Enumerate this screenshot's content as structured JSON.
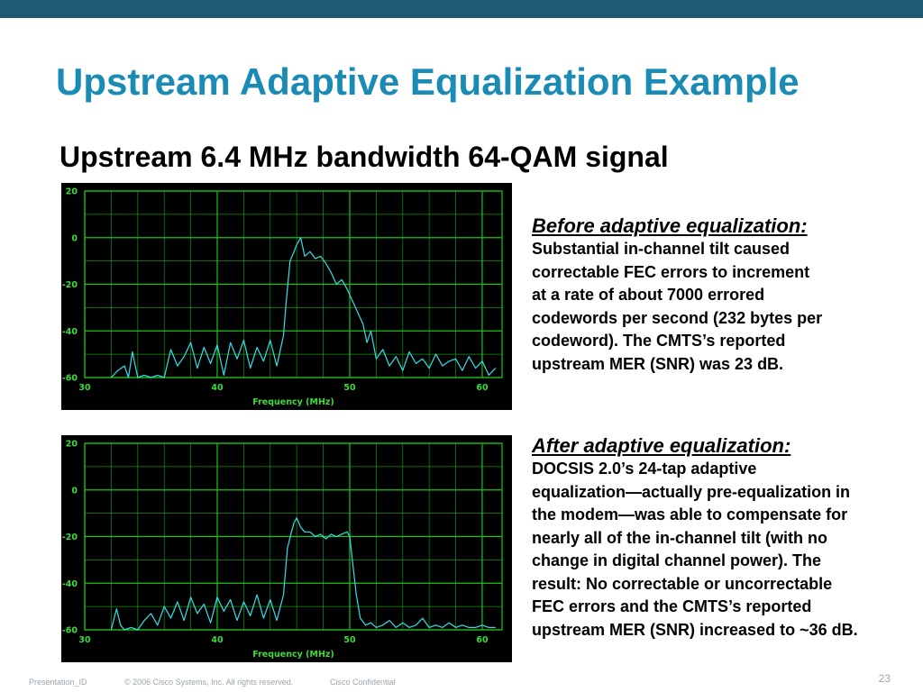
{
  "slide": {
    "title": "Upstream Adaptive Equalization Example",
    "subtitle": "Upstream 6.4 MHz bandwidth 64-QAM signal"
  },
  "annotations": {
    "before": {
      "heading": "Before adaptive equalization:",
      "body": "Substantial in-channel tilt caused\ncorrectable FEC errors to increment\nat a rate of about 7000 errored\ncodewords per second (232 bytes per\ncodeword). The CMTS’s reported\nupstream MER (SNR) was 23 dB."
    },
    "after": {
      "heading": "After adaptive equalization:",
      "body": "DOCSIS 2.0’s 24-tap adaptive\nequalization—actually pre-equalization in\nthe modem—was able to compensate for\nnearly all of the in-channel tilt (with no\nchange in digital channel power). The\nresult: No correctable or uncorrectable\nFEC errors and the CMTS’s reported\nupstream MER (SNR) increased to ~36 dB."
    }
  },
  "footer": {
    "presentation_id": "Presentation_ID",
    "copyright": "© 2006 Cisco Systems, Inc. All rights reserved.",
    "confidential": "Cisco Confidential",
    "page_number": "23"
  },
  "colors": {
    "accent_title": "#1a8bb5",
    "top_bar": "#1f5a75",
    "chart_background": "#000000",
    "grid": "#19c419",
    "trace": "#33e0e8",
    "axis_labels": "#3ddc3d"
  },
  "chart_data": [
    {
      "id": "before",
      "type": "line",
      "xlabel": "Frequency (MHz)",
      "ylabel": "",
      "xlim": [
        30,
        61.5
      ],
      "ylim": [
        -60,
        20
      ],
      "xticks": [
        30,
        40,
        50,
        60
      ],
      "yticks": [
        20,
        0,
        -20,
        -40,
        -60
      ],
      "grid": true,
      "series": [
        {
          "x": [
            32,
            32.5,
            33,
            33.3,
            33.6,
            34,
            34.5,
            35,
            35.5,
            36,
            36.5,
            37,
            37.5,
            38,
            38.5,
            39,
            39.5,
            40,
            40.5,
            41,
            41.5,
            42,
            42.5,
            43,
            43.5,
            44,
            44.5,
            45,
            45.2,
            45.5,
            45.8,
            46,
            46.3,
            46.6,
            47,
            47.4,
            47.8,
            48.2,
            48.6,
            49,
            49.4,
            49.8,
            50.2,
            50.6,
            51,
            51.3,
            51.6,
            52,
            52.5,
            53,
            53.5,
            54,
            54.5,
            55,
            55.5,
            56,
            56.5,
            57,
            57.5,
            58,
            58.5,
            59,
            59.5,
            60,
            60.5,
            61
          ],
          "y": [
            -60,
            -57,
            -55,
            -60,
            -49,
            -60,
            -59,
            -60,
            -59,
            -60,
            -48,
            -55,
            -51,
            -45,
            -56,
            -47,
            -54,
            -46,
            -59,
            -45,
            -52,
            -44,
            -56,
            -47,
            -53,
            -44,
            -55,
            -42,
            -28,
            -10,
            -6,
            -3,
            0,
            -8,
            -6,
            -9,
            -8,
            -11,
            -15,
            -20,
            -18,
            -22,
            -27,
            -32,
            -37,
            -45,
            -40,
            -52,
            -48,
            -55,
            -51,
            -57,
            -49,
            -54,
            -52,
            -56,
            -50,
            -55,
            -53,
            -52,
            -57,
            -51,
            -56,
            -53,
            -59,
            -56
          ]
        }
      ]
    },
    {
      "id": "after",
      "type": "line",
      "xlabel": "Frequency (MHz)",
      "ylabel": "",
      "xlim": [
        30,
        61.5
      ],
      "ylim": [
        -60,
        20
      ],
      "xticks": [
        30,
        40,
        50,
        60
      ],
      "yticks": [
        20,
        0,
        -20,
        -40,
        -60
      ],
      "grid": true,
      "series": [
        {
          "x": [
            32,
            32.4,
            32.7,
            33,
            33.5,
            34,
            34.5,
            35,
            35.5,
            36,
            36.5,
            37,
            37.5,
            38,
            38.5,
            39,
            39.5,
            40,
            40.5,
            41,
            41.5,
            42,
            42.5,
            43,
            43.5,
            44,
            44.5,
            45,
            45.3,
            45.6,
            45.8,
            46,
            46.3,
            46.6,
            47,
            47.4,
            47.8,
            48.2,
            48.6,
            49,
            49.4,
            49.8,
            50,
            50.2,
            50.5,
            50.8,
            51.2,
            51.6,
            52,
            52.5,
            53,
            53.5,
            54,
            54.5,
            55,
            55.5,
            56,
            56.5,
            57,
            57.5,
            58,
            58.5,
            59,
            59.5,
            60,
            60.5,
            61
          ],
          "y": [
            -60,
            -51,
            -58,
            -60,
            -59,
            -60,
            -56,
            -53,
            -58,
            -50,
            -55,
            -48,
            -56,
            -46,
            -53,
            -49,
            -57,
            -46,
            -52,
            -47,
            -56,
            -48,
            -54,
            -45,
            -55,
            -47,
            -56,
            -45,
            -25,
            -18,
            -14,
            -12,
            -16,
            -18,
            -18,
            -20,
            -19,
            -21,
            -19,
            -20,
            -19,
            -18,
            -20,
            -30,
            -45,
            -55,
            -58,
            -57,
            -59,
            -58,
            -56,
            -59,
            -57,
            -59,
            -58,
            -55,
            -59,
            -58,
            -59,
            -57,
            -59,
            -58,
            -59,
            -59,
            -58,
            -59,
            -59
          ]
        }
      ]
    }
  ]
}
